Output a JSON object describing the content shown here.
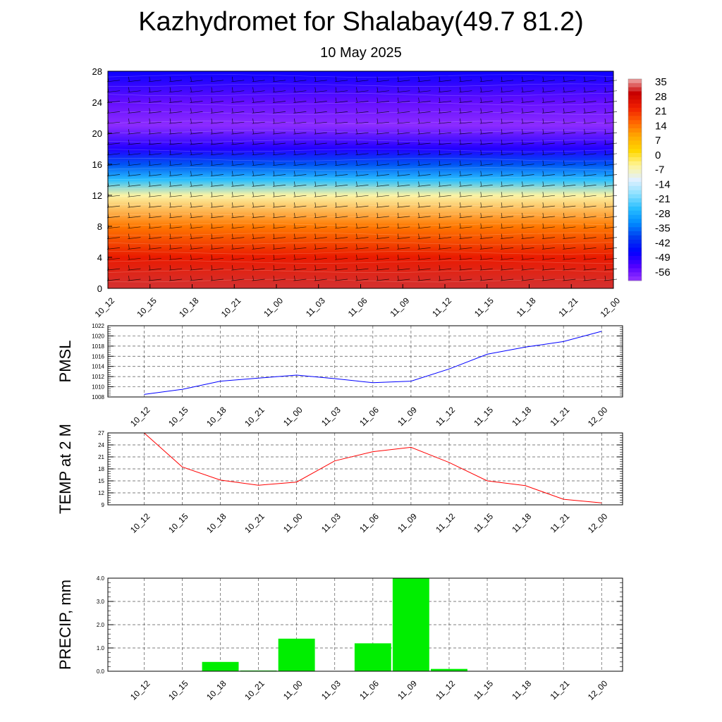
{
  "header": {
    "title": "Kazhydromet for Shalabay(49.7 81.2)",
    "subtitle": "10 May 2025"
  },
  "colors": {
    "pmsl_line": "#0000ff",
    "temp_line": "#ff0000",
    "precip_bar": "#00ee00",
    "grid": "#555555"
  },
  "chart_data": [
    {
      "type": "heatmap",
      "name": "cross-section",
      "categories": [
        "10_12",
        "10_15",
        "10_18",
        "10_21",
        "11_00",
        "11_03",
        "11_06",
        "11_09",
        "11_12",
        "11_15",
        "11_18",
        "11_21",
        "12_00"
      ],
      "ylim": [
        0,
        28
      ],
      "yticks": [
        0,
        4,
        8,
        12,
        16,
        20,
        24,
        28
      ],
      "colorbar": {
        "labels": [
          "35",
          "28",
          "21",
          "14",
          "7",
          "0",
          "-7",
          "-14",
          "-21",
          "-28",
          "-35",
          "-42",
          "-49",
          "-56"
        ],
        "range": [
          -63,
          35
        ]
      },
      "temperature_profile": [
        {
          "level": 0,
          "value": 30
        },
        {
          "level": 4,
          "value": 22
        },
        {
          "level": 8,
          "value": 12
        },
        {
          "level": 12,
          "value": -8
        },
        {
          "level": 14,
          "value": -28
        },
        {
          "level": 16,
          "value": -40
        },
        {
          "level": 18,
          "value": -52
        },
        {
          "level": 21,
          "value": -62
        },
        {
          "level": 24,
          "value": -58
        },
        {
          "level": 28,
          "value": -50
        }
      ],
      "wind_barbs": true
    },
    {
      "type": "line",
      "name": "pmsl",
      "ylabel": "PMSL",
      "categories": [
        "10_12",
        "10_15",
        "10_18",
        "10_21",
        "11_00",
        "11_03",
        "11_06",
        "11_09",
        "11_12",
        "11_15",
        "11_18",
        "11_21",
        "12_00"
      ],
      "values": [
        1008.5,
        1009.5,
        1011.1,
        1011.7,
        1012.3,
        1011.6,
        1010.8,
        1011.1,
        1013.5,
        1016.4,
        1017.8,
        1018.9,
        1020.9
      ],
      "ylim": [
        1008,
        1022
      ],
      "yticks": [
        1008,
        1010,
        1012,
        1014,
        1016,
        1018,
        1020,
        1022
      ]
    },
    {
      "type": "line",
      "name": "temp",
      "ylabel": "TEMP at 2 M",
      "categories": [
        "10_12",
        "10_15",
        "10_18",
        "10_21",
        "11_00",
        "11_03",
        "11_06",
        "11_09",
        "11_12",
        "11_15",
        "11_18",
        "11_21",
        "12_00"
      ],
      "values": [
        27,
        18.5,
        15.2,
        13.9,
        14.7,
        20,
        22.3,
        23.4,
        19.6,
        15,
        13.8,
        10.4,
        9.5
      ],
      "ylim": [
        9,
        27
      ],
      "yticks": [
        9,
        12,
        15,
        18,
        21,
        24,
        27
      ]
    },
    {
      "type": "bar",
      "name": "precip",
      "ylabel": "PRECIP, mm",
      "categories": [
        "10_12",
        "10_15",
        "10_18",
        "10_21",
        "11_00",
        "11_03",
        "11_06",
        "11_09",
        "11_12",
        "11_15",
        "11_18",
        "11_21",
        "12_00"
      ],
      "values": [
        0,
        0,
        0.4,
        0.03,
        1.4,
        0,
        1.2,
        4.0,
        0.1,
        0,
        0,
        0,
        0
      ],
      "ylim": [
        0,
        4
      ],
      "yticks": [
        "0.0",
        "1.0",
        "2.0",
        "3.0",
        "4.0"
      ]
    }
  ]
}
